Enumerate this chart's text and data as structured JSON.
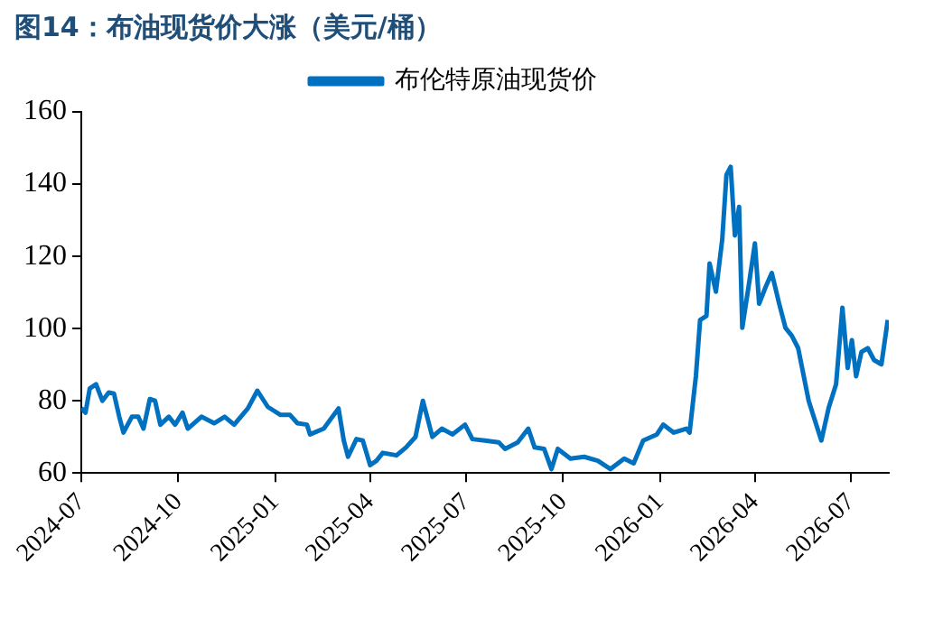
{
  "chart_data": {
    "type": "line",
    "title": "图14：布油现货价大涨（美元/桶）",
    "x": [
      "2024-07-01",
      "2024-07-05",
      "2024-07-09",
      "2024-07-15",
      "2024-07-21",
      "2024-07-27",
      "2024-08-01",
      "2024-08-06",
      "2024-08-10",
      "2024-08-18",
      "2024-08-24",
      "2024-08-29",
      "2024-09-04",
      "2024-09-09",
      "2024-09-14",
      "2024-09-22",
      "2024-09-28",
      "2024-10-05",
      "2024-10-10",
      "2024-10-23",
      "2024-11-04",
      "2024-11-14",
      "2024-11-23",
      "2024-12-06",
      "2024-12-15",
      "2024-12-25",
      "2025-01-06",
      "2025-01-15",
      "2025-01-22",
      "2025-01-31",
      "2025-02-03",
      "2025-02-16",
      "2025-03-02",
      "2025-03-07",
      "2025-03-11",
      "2025-03-19",
      "2025-03-25",
      "2025-04-01",
      "2025-04-07",
      "2025-04-13",
      "2025-04-26",
      "2025-05-05",
      "2025-05-14",
      "2025-05-21",
      "2025-05-26",
      "2025-05-30",
      "2025-06-08",
      "2025-06-18",
      "2025-06-30",
      "2025-07-07",
      "2025-07-19",
      "2025-08-01",
      "2025-08-07",
      "2025-08-19",
      "2025-08-29",
      "2025-09-04",
      "2025-09-13",
      "2025-09-20",
      "2025-09-26",
      "2025-10-08",
      "2025-10-21",
      "2025-11-03",
      "2025-11-15",
      "2025-11-28",
      "2025-12-07",
      "2025-12-16",
      "2025-12-29",
      "2026-01-04",
      "2026-01-14",
      "2026-01-26",
      "2026-01-29",
      "2026-02-04",
      "2026-02-08",
      "2026-02-14",
      "2026-02-17",
      "2026-02-23",
      "2026-03-01",
      "2026-03-05",
      "2026-03-09",
      "2026-03-13",
      "2026-03-17",
      "2026-03-20",
      "2026-03-27",
      "2026-04-01",
      "2026-04-05",
      "2026-04-11",
      "2026-04-17",
      "2026-04-24",
      "2026-04-30",
      "2026-05-06",
      "2026-05-12",
      "2026-05-22",
      "2026-06-03",
      "2026-06-10",
      "2026-06-17",
      "2026-06-23",
      "2026-06-28",
      "2026-07-02",
      "2026-07-06",
      "2026-07-11",
      "2026-07-17",
      "2026-07-23",
      "2026-07-30",
      "2026-08-05"
    ],
    "series": [
      {
        "name": "布伦特原油现货价",
        "color": "#0070c0",
        "values": [
          78,
          76.7,
          83.4,
          84.6,
          80,
          82.3,
          82,
          75.6,
          71.2,
          75.6,
          75.6,
          72.3,
          80.5,
          80,
          73.4,
          75.6,
          73.4,
          76.7,
          72.3,
          75.6,
          73.8,
          75.6,
          73.4,
          77.9,
          82.8,
          78.3,
          76.1,
          76.1,
          73.8,
          73.4,
          70.7,
          72.3,
          77.9,
          69,
          64.5,
          69.4,
          69,
          62.2,
          63.4,
          65.6,
          64.9,
          67.1,
          70,
          80,
          74.5,
          70,
          72.3,
          70.7,
          73.4,
          69.4,
          69,
          68.5,
          66.7,
          68.5,
          72.3,
          67.1,
          66.7,
          61.1,
          66.7,
          64,
          64.5,
          63.4,
          61.1,
          64,
          62.7,
          69,
          70.7,
          73.4,
          71.2,
          72.3,
          71.2,
          86.8,
          102.4,
          103.5,
          118,
          110.2,
          124.7,
          142.6,
          144.8,
          125.8,
          133.7,
          100.2,
          113.6,
          123.6,
          106.9,
          111.4,
          115.4,
          106.9,
          100.2,
          98,
          94.6,
          80,
          69,
          78.1,
          84.6,
          105.8,
          89.1,
          96.8,
          86.8,
          93.5,
          94.6,
          91.3,
          90.1,
          102.4
        ]
      }
    ],
    "xlim": [
      "2024-07-01",
      "2026-08-06"
    ],
    "xticks": [
      "2024-07",
      "2024-10",
      "2025-01",
      "2025-04",
      "2025-07",
      "2025-10",
      "2026-01",
      "2026-04",
      "2026-07"
    ],
    "ylim": [
      60,
      160
    ],
    "yticks": [
      60,
      80,
      100,
      120,
      140,
      160
    ],
    "grid": false,
    "legend": "top",
    "marker": "none",
    "line_style": "solid"
  }
}
